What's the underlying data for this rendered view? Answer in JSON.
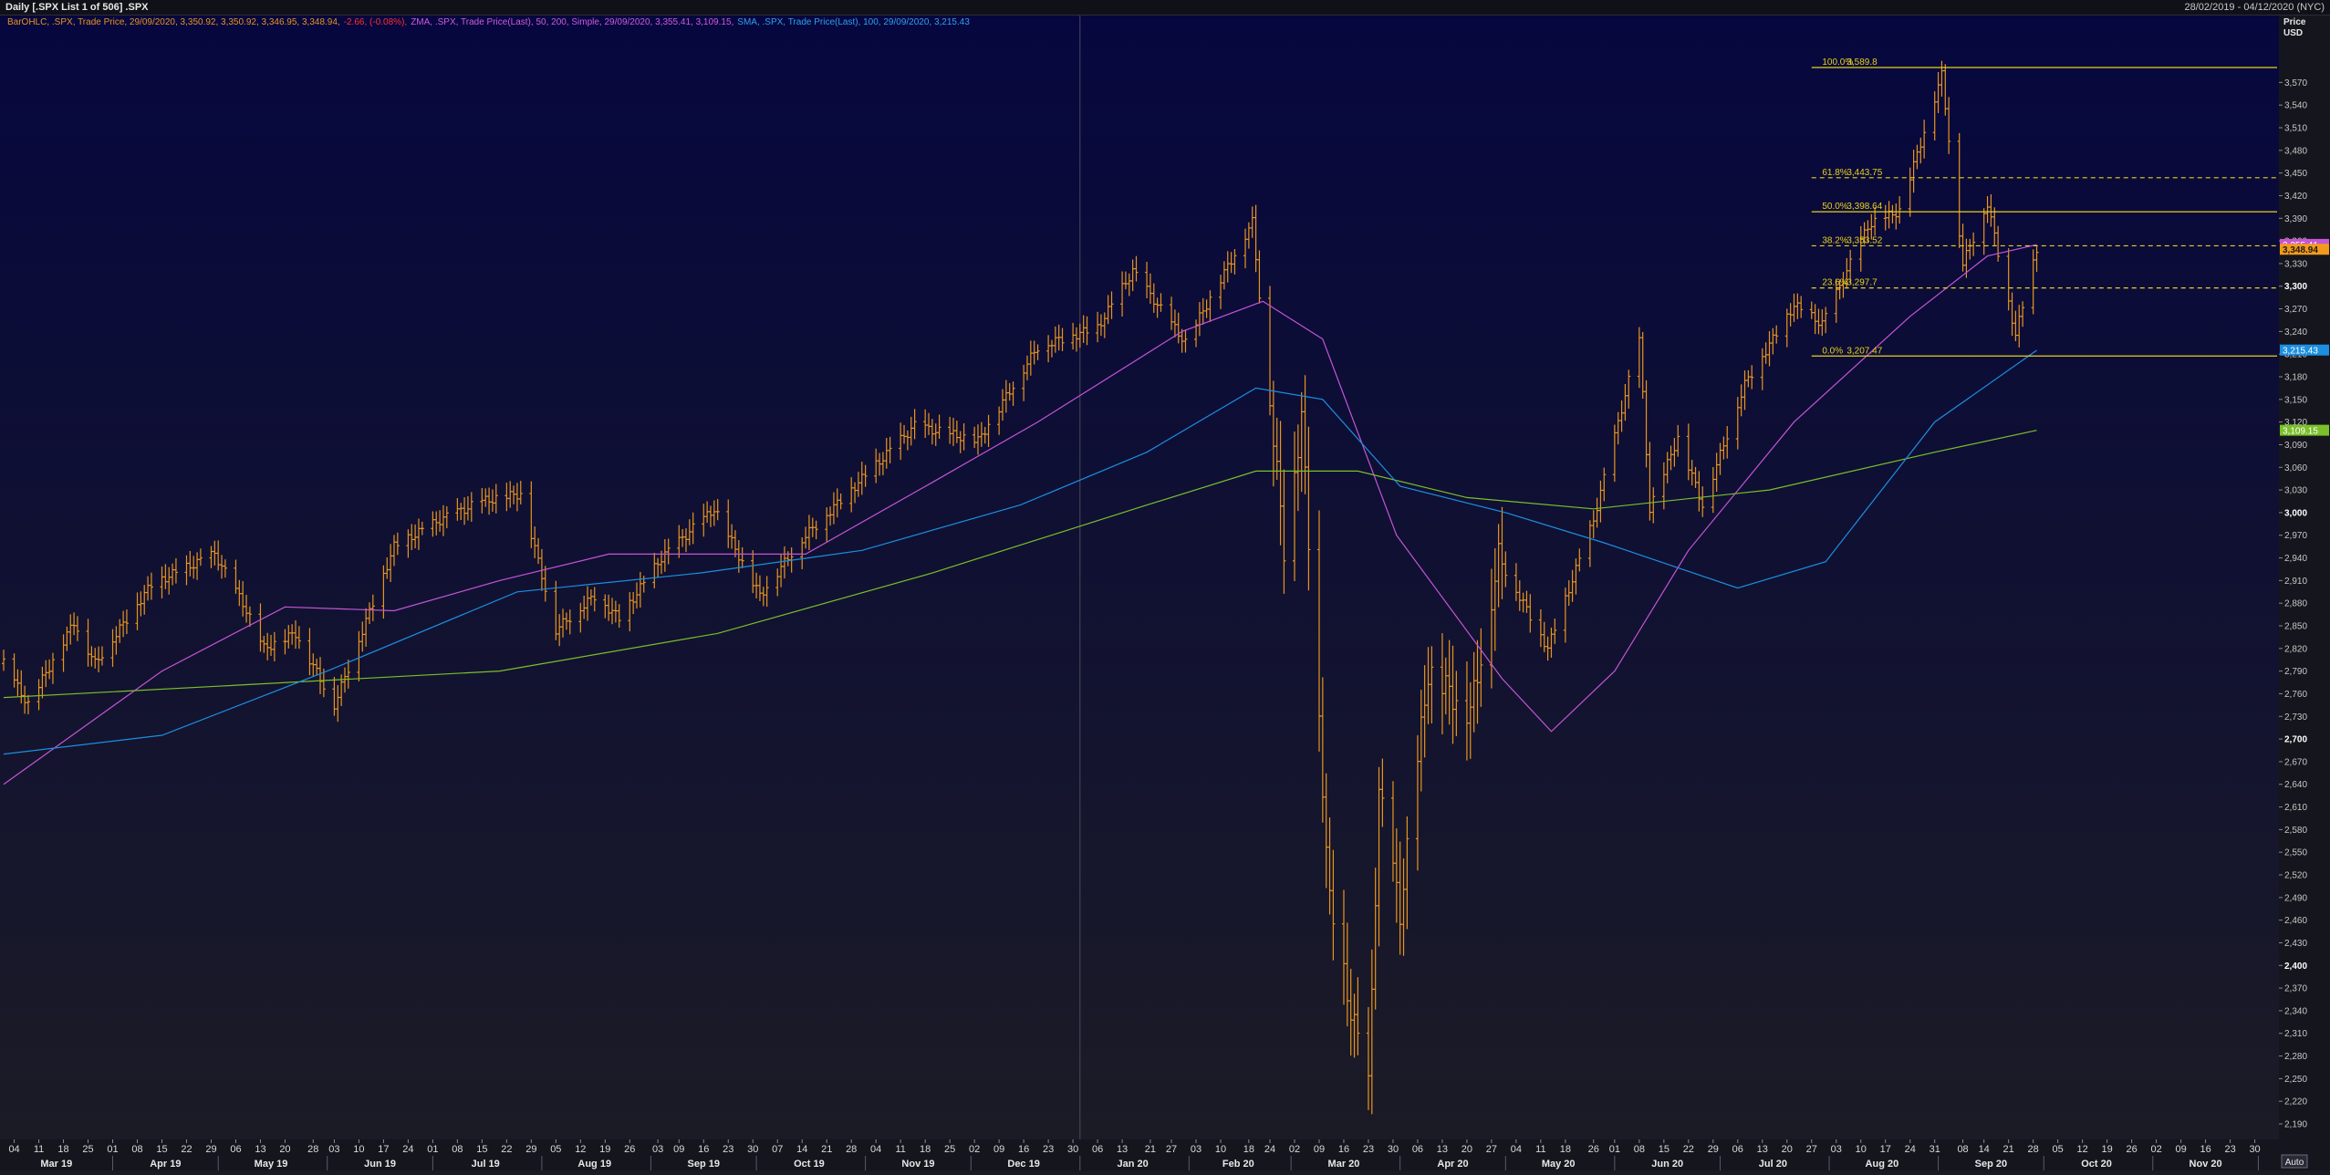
{
  "window": {
    "title": "Daily [.SPX List 1 of 506] .SPX",
    "range": "28/02/2019 - 04/12/2020 (NYC)"
  },
  "legend": {
    "bar": "BarOHLC, .SPX, Trade Price, 29/09/2020, 3,350.92, 3,350.92, 3,346.95, 3,348.94,",
    "bar_change": "-2.66, (-0.08%),",
    "zma": "ZMA, .SPX, Trade Price(Last), 50, 200, Simple, 29/09/2020, 3,355.41, 3,109.15,",
    "sma": "SMA, .SPX, Trade Price(Last), 100, 29/09/2020, 3,215.43"
  },
  "price_axis": {
    "title": "Price",
    "unit": "USD"
  },
  "auto_label": "Auto",
  "colors": {
    "bg_top": "#06073e",
    "bg_bottom": "#1b1b26",
    "bar": "#e8951e",
    "ma50": "#c455d6",
    "ma200": "#7bbf2a",
    "ma100": "#1c8fe0",
    "fib": "#e6d21a"
  },
  "chart_data": {
    "type": "ohlc",
    "ylim": [
      2190,
      3620
    ],
    "x_range": [
      "2019-03-01",
      "2020-12-04"
    ],
    "y_ticks": [
      "2,190",
      "2,220",
      "2,250",
      "2,280",
      "2,310",
      "2,340",
      "2,370",
      "2,400",
      "2,430",
      "2,460",
      "2,490",
      "2,520",
      "2,550",
      "2,580",
      "2,610",
      "2,640",
      "2,670",
      "2,700",
      "2,730",
      "2,760",
      "2,790",
      "2,820",
      "2,850",
      "2,880",
      "2,910",
      "2,940",
      "2,970",
      "3,000",
      "3,030",
      "3,060",
      "3,090",
      "3,120",
      "3,150",
      "3,180",
      "3,210",
      "3,240",
      "3,270",
      "3,300",
      "3,330",
      "3,360",
      "3,390",
      "3,420",
      "3,450",
      "3,480",
      "3,510",
      "3,540",
      "3,570"
    ],
    "y_ticks_bold": [
      "2,400",
      "2,700",
      "3,000",
      "3,300"
    ],
    "x_ticks": [
      "04",
      "11",
      "18",
      "25",
      "01",
      "08",
      "15",
      "22",
      "29",
      "06",
      "13",
      "20",
      "28",
      "03",
      "10",
      "17",
      "24",
      "01",
      "08",
      "15",
      "22",
      "29",
      "05",
      "12",
      "19",
      "26",
      "03",
      "09",
      "16",
      "23",
      "30",
      "07",
      "14",
      "21",
      "28",
      "04",
      "11",
      "18",
      "25",
      "02",
      "09",
      "16",
      "23",
      "30",
      "06",
      "13",
      "21",
      "27",
      "03",
      "10",
      "18",
      "24",
      "02",
      "09",
      "16",
      "23",
      "30",
      "06",
      "13",
      "20",
      "27",
      "04",
      "11",
      "18",
      "26",
      "01",
      "08",
      "15",
      "22",
      "29",
      "06",
      "13",
      "20",
      "27",
      "03",
      "10",
      "17",
      "24",
      "31",
      "08",
      "14",
      "21",
      "28",
      "05",
      "12",
      "19",
      "26",
      "02",
      "09",
      "16",
      "23",
      "30"
    ],
    "x_tick_dates": [
      "2019-03-04",
      "2019-03-11",
      "2019-03-18",
      "2019-03-25",
      "2019-04-01",
      "2019-04-08",
      "2019-04-15",
      "2019-04-22",
      "2019-04-29",
      "2019-05-06",
      "2019-05-13",
      "2019-05-20",
      "2019-05-28",
      "2019-06-03",
      "2019-06-10",
      "2019-06-17",
      "2019-06-24",
      "2019-07-01",
      "2019-07-08",
      "2019-07-15",
      "2019-07-22",
      "2019-07-29",
      "2019-08-05",
      "2019-08-12",
      "2019-08-19",
      "2019-08-26",
      "2019-09-03",
      "2019-09-09",
      "2019-09-16",
      "2019-09-23",
      "2019-09-30",
      "2019-10-07",
      "2019-10-14",
      "2019-10-21",
      "2019-10-28",
      "2019-11-04",
      "2019-11-11",
      "2019-11-18",
      "2019-11-25",
      "2019-12-02",
      "2019-12-09",
      "2019-12-16",
      "2019-12-23",
      "2019-12-30",
      "2020-01-06",
      "2020-01-13",
      "2020-01-21",
      "2020-01-27",
      "2020-02-03",
      "2020-02-10",
      "2020-02-18",
      "2020-02-24",
      "2020-03-02",
      "2020-03-09",
      "2020-03-16",
      "2020-03-23",
      "2020-03-30",
      "2020-04-06",
      "2020-04-13",
      "2020-04-20",
      "2020-04-27",
      "2020-05-04",
      "2020-05-11",
      "2020-05-18",
      "2020-05-26",
      "2020-06-01",
      "2020-06-08",
      "2020-06-15",
      "2020-06-22",
      "2020-06-29",
      "2020-07-06",
      "2020-07-13",
      "2020-07-20",
      "2020-07-27",
      "2020-08-03",
      "2020-08-10",
      "2020-08-17",
      "2020-08-24",
      "2020-08-31",
      "2020-09-08",
      "2020-09-14",
      "2020-09-21",
      "2020-09-28",
      "2020-10-05",
      "2020-10-12",
      "2020-10-19",
      "2020-10-26",
      "2020-11-02",
      "2020-11-09",
      "2020-11-16",
      "2020-11-23",
      "2020-11-30"
    ],
    "months": [
      {
        "label": "Mar 19",
        "date": "2019-03-16"
      },
      {
        "label": "Apr 19",
        "date": "2019-04-16"
      },
      {
        "label": "May 19",
        "date": "2019-05-16"
      },
      {
        "label": "Jun 19",
        "date": "2019-06-16"
      },
      {
        "label": "Jul 19",
        "date": "2019-07-16"
      },
      {
        "label": "Aug 19",
        "date": "2019-08-16"
      },
      {
        "label": "Sep 19",
        "date": "2019-09-16"
      },
      {
        "label": "Oct 19",
        "date": "2019-10-16"
      },
      {
        "label": "Nov 19",
        "date": "2019-11-16"
      },
      {
        "label": "Dec 19",
        "date": "2019-12-16"
      },
      {
        "label": "Jan 20",
        "date": "2020-01-16"
      },
      {
        "label": "Feb 20",
        "date": "2020-02-15"
      },
      {
        "label": "Mar 20",
        "date": "2020-03-16"
      },
      {
        "label": "Apr 20",
        "date": "2020-04-16"
      },
      {
        "label": "May 20",
        "date": "2020-05-16"
      },
      {
        "label": "Jun 20",
        "date": "2020-06-16"
      },
      {
        "label": "Jul 20",
        "date": "2020-07-16"
      },
      {
        "label": "Aug 20",
        "date": "2020-08-16"
      },
      {
        "label": "Sep 20",
        "date": "2020-09-16"
      },
      {
        "label": "Oct 20",
        "date": "2020-10-16"
      },
      {
        "label": "Nov 20",
        "date": "2020-11-16"
      }
    ],
    "month_starts": [
      "2019-04-01",
      "2019-05-01",
      "2019-06-01",
      "2019-07-01",
      "2019-08-01",
      "2019-09-01",
      "2019-10-01",
      "2019-11-01",
      "2019-12-01",
      "2020-01-01",
      "2020-02-01",
      "2020-03-01",
      "2020-04-01",
      "2020-05-01",
      "2020-06-01",
      "2020-07-01",
      "2020-08-01",
      "2020-09-01",
      "2020-10-01",
      "2020-11-01",
      "2020-12-01"
    ],
    "year_divider": "2020-01-01",
    "price_path": [
      [
        "2019-03-01",
        2800
      ],
      [
        "2019-03-08",
        2745
      ],
      [
        "2019-03-21",
        2855
      ],
      [
        "2019-03-27",
        2800
      ],
      [
        "2019-04-12",
        2905
      ],
      [
        "2019-04-30",
        2945
      ],
      [
        "2019-05-08",
        2880
      ],
      [
        "2019-05-14",
        2820
      ],
      [
        "2019-05-23",
        2840
      ],
      [
        "2019-06-03",
        2745
      ],
      [
        "2019-06-20",
        2955
      ],
      [
        "2019-07-03",
        2990
      ],
      [
        "2019-07-15",
        3015
      ],
      [
        "2019-07-26",
        3025
      ],
      [
        "2019-08-05",
        2845
      ],
      [
        "2019-08-16",
        2890
      ],
      [
        "2019-08-23",
        2860
      ],
      [
        "2019-09-04",
        2940
      ],
      [
        "2019-09-19",
        3005
      ],
      [
        "2019-10-02",
        2890
      ],
      [
        "2019-10-14",
        2965
      ],
      [
        "2019-10-30",
        3040
      ],
      [
        "2019-11-15",
        3115
      ],
      [
        "2019-12-03",
        3095
      ],
      [
        "2019-12-20",
        3220
      ],
      [
        "2020-01-06",
        3245
      ],
      [
        "2020-01-16",
        3320
      ],
      [
        "2020-01-31",
        3225
      ],
      [
        "2020-02-19",
        3385
      ],
      [
        "2020-02-28",
        2955
      ],
      [
        "2020-03-04",
        3125
      ],
      [
        "2020-03-12",
        2480
      ],
      [
        "2020-03-16",
        2385
      ],
      [
        "2020-03-23",
        2235
      ],
      [
        "2020-03-26",
        2630
      ],
      [
        "2020-04-01",
        2470
      ],
      [
        "2020-04-09",
        2790
      ],
      [
        "2020-04-21",
        2735
      ],
      [
        "2020-04-29",
        2940
      ],
      [
        "2020-05-13",
        2820
      ],
      [
        "2020-05-26",
        2990
      ],
      [
        "2020-06-08",
        3230
      ],
      [
        "2020-06-11",
        3005
      ],
      [
        "2020-06-19",
        3100
      ],
      [
        "2020-06-26",
        3010
      ],
      [
        "2020-07-08",
        3170
      ],
      [
        "2020-07-22",
        3275
      ],
      [
        "2020-07-30",
        3250
      ],
      [
        "2020-08-12",
        3380
      ],
      [
        "2020-08-21",
        3400
      ],
      [
        "2020-09-02",
        3580
      ],
      [
        "2020-09-08",
        3330
      ],
      [
        "2020-09-15",
        3410
      ],
      [
        "2020-09-23",
        3235
      ],
      [
        "2020-09-29",
        3349
      ]
    ],
    "series": [
      {
        "name": "ZMA 50",
        "color": "#c455d6",
        "last": 3355.41,
        "last_label": "3,355.41",
        "points": [
          [
            "2019-03-01",
            2640
          ],
          [
            "2019-04-15",
            2790
          ],
          [
            "2019-05-20",
            2875
          ],
          [
            "2019-06-20",
            2870
          ],
          [
            "2019-07-20",
            2910
          ],
          [
            "2019-08-20",
            2945
          ],
          [
            "2019-09-15",
            2945
          ],
          [
            "2019-10-15",
            2945
          ],
          [
            "2019-11-20",
            3040
          ],
          [
            "2019-12-20",
            3120
          ],
          [
            "2020-01-30",
            3240
          ],
          [
            "2020-02-22",
            3280
          ],
          [
            "2020-03-10",
            3230
          ],
          [
            "2020-03-31",
            2970
          ],
          [
            "2020-04-30",
            2780
          ],
          [
            "2020-05-14",
            2710
          ],
          [
            "2020-06-01",
            2790
          ],
          [
            "2020-06-22",
            2950
          ],
          [
            "2020-07-22",
            3120
          ],
          [
            "2020-08-24",
            3260
          ],
          [
            "2020-09-15",
            3340
          ],
          [
            "2020-09-29",
            3355
          ]
        ]
      },
      {
        "name": "ZMA 200",
        "color": "#7bbf2a",
        "last": 3109.15,
        "last_label": "3,109.15",
        "points": [
          [
            "2019-03-01",
            2755
          ],
          [
            "2019-05-01",
            2770
          ],
          [
            "2019-07-20",
            2790
          ],
          [
            "2019-09-20",
            2840
          ],
          [
            "2019-11-20",
            2920
          ],
          [
            "2020-01-20",
            3010
          ],
          [
            "2020-02-20",
            3055
          ],
          [
            "2020-03-20",
            3055
          ],
          [
            "2020-04-20",
            3020
          ],
          [
            "2020-05-26",
            3005
          ],
          [
            "2020-07-15",
            3030
          ],
          [
            "2020-08-31",
            3080
          ],
          [
            "2020-09-29",
            3109
          ]
        ]
      },
      {
        "name": "SMA 100",
        "color": "#1c8fe0",
        "last": 3215.43,
        "last_label": "3,215.43",
        "points": [
          [
            "2019-03-01",
            2680
          ],
          [
            "2019-04-15",
            2705
          ],
          [
            "2019-06-01",
            2790
          ],
          [
            "2019-07-25",
            2895
          ],
          [
            "2019-09-15",
            2920
          ],
          [
            "2019-10-31",
            2950
          ],
          [
            "2019-12-15",
            3010
          ],
          [
            "2020-01-20",
            3080
          ],
          [
            "2020-02-20",
            3165
          ],
          [
            "2020-03-10",
            3150
          ],
          [
            "2020-04-01",
            3035
          ],
          [
            "2020-05-01",
            3000
          ],
          [
            "2020-05-29",
            2960
          ],
          [
            "2020-07-06",
            2900
          ],
          [
            "2020-07-31",
            2935
          ],
          [
            "2020-08-31",
            3120
          ],
          [
            "2020-09-29",
            3215
          ]
        ]
      }
    ],
    "last_price": 3348.94,
    "last_price_label": "3,348.94",
    "fibonacci": {
      "start": "2020-07-27",
      "pct_label_at": "2020-07-30",
      "value_label_at": "2020-08-06",
      "levels": [
        {
          "pct": "100.0%",
          "label": "3,589.8",
          "value": 3589.8,
          "style": "solid"
        },
        {
          "pct": "61.8%",
          "label": "3,443.75",
          "value": 3443.75,
          "style": "dashed"
        },
        {
          "pct": "50.0%",
          "label": "3,398.64",
          "value": 3398.64,
          "style": "solid"
        },
        {
          "pct": "38.2%",
          "label": "3,353.52",
          "value": 3353.52,
          "style": "dashed"
        },
        {
          "pct": "23.6%",
          "label": "3,297.7",
          "value": 3297.7,
          "style": "dashed"
        },
        {
          "pct": "0.0%",
          "label": "3,207.47",
          "value": 3207.47,
          "style": "solid"
        }
      ]
    }
  }
}
